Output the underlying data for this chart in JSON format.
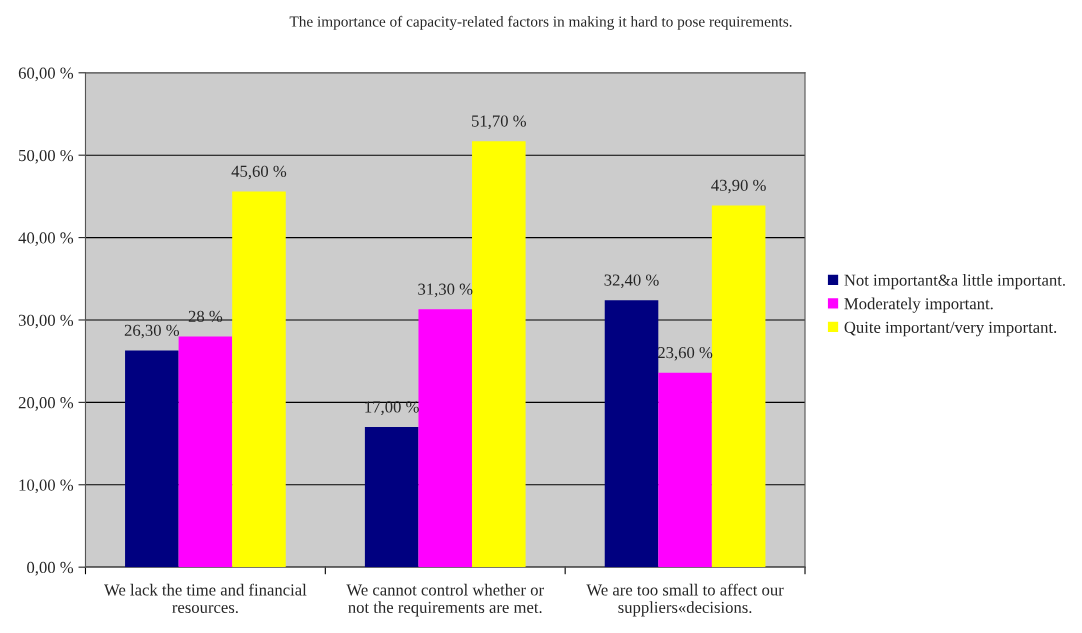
{
  "chart_data": {
    "type": "bar",
    "title": "The importance of capacity-related factors in making it hard to pose requirements.",
    "categories": [
      "We lack the time and financial\nresources.",
      "We cannot control whether or\nnot the requirements are met.",
      "We are too small to affect our\nsuppliers«decisions."
    ],
    "series": [
      {
        "name": "Not important&a little important.",
        "color": "#000080",
        "values": [
          26.3,
          17.0,
          32.4
        ],
        "value_labels": [
          "26,30 %",
          "17,00 %",
          "32,40 %"
        ]
      },
      {
        "name": "Moderately important.",
        "color": "#ff00ff",
        "values": [
          28,
          31.3,
          23.6
        ],
        "value_labels": [
          "28 %",
          "31,30 %",
          "23,60 %"
        ]
      },
      {
        "name": "Quite important/very important.",
        "color": "#ffff00",
        "values": [
          45.6,
          51.7,
          43.9
        ],
        "value_labels": [
          "45,60 %",
          "51,70 %",
          "43,90 %"
        ]
      }
    ],
    "ylim": [
      0,
      60
    ],
    "yticks": [
      {
        "value": 0,
        "label": "0,00 %"
      },
      {
        "value": 10,
        "label": "10,00 %"
      },
      {
        "value": 20,
        "label": "20,00 %"
      },
      {
        "value": 30,
        "label": "30,00 %"
      },
      {
        "value": 40,
        "label": "40,00 %"
      },
      {
        "value": 50,
        "label": "50,00 %"
      },
      {
        "value": 60,
        "label": "60,00 %"
      }
    ],
    "grid": "y",
    "legend": "right"
  }
}
